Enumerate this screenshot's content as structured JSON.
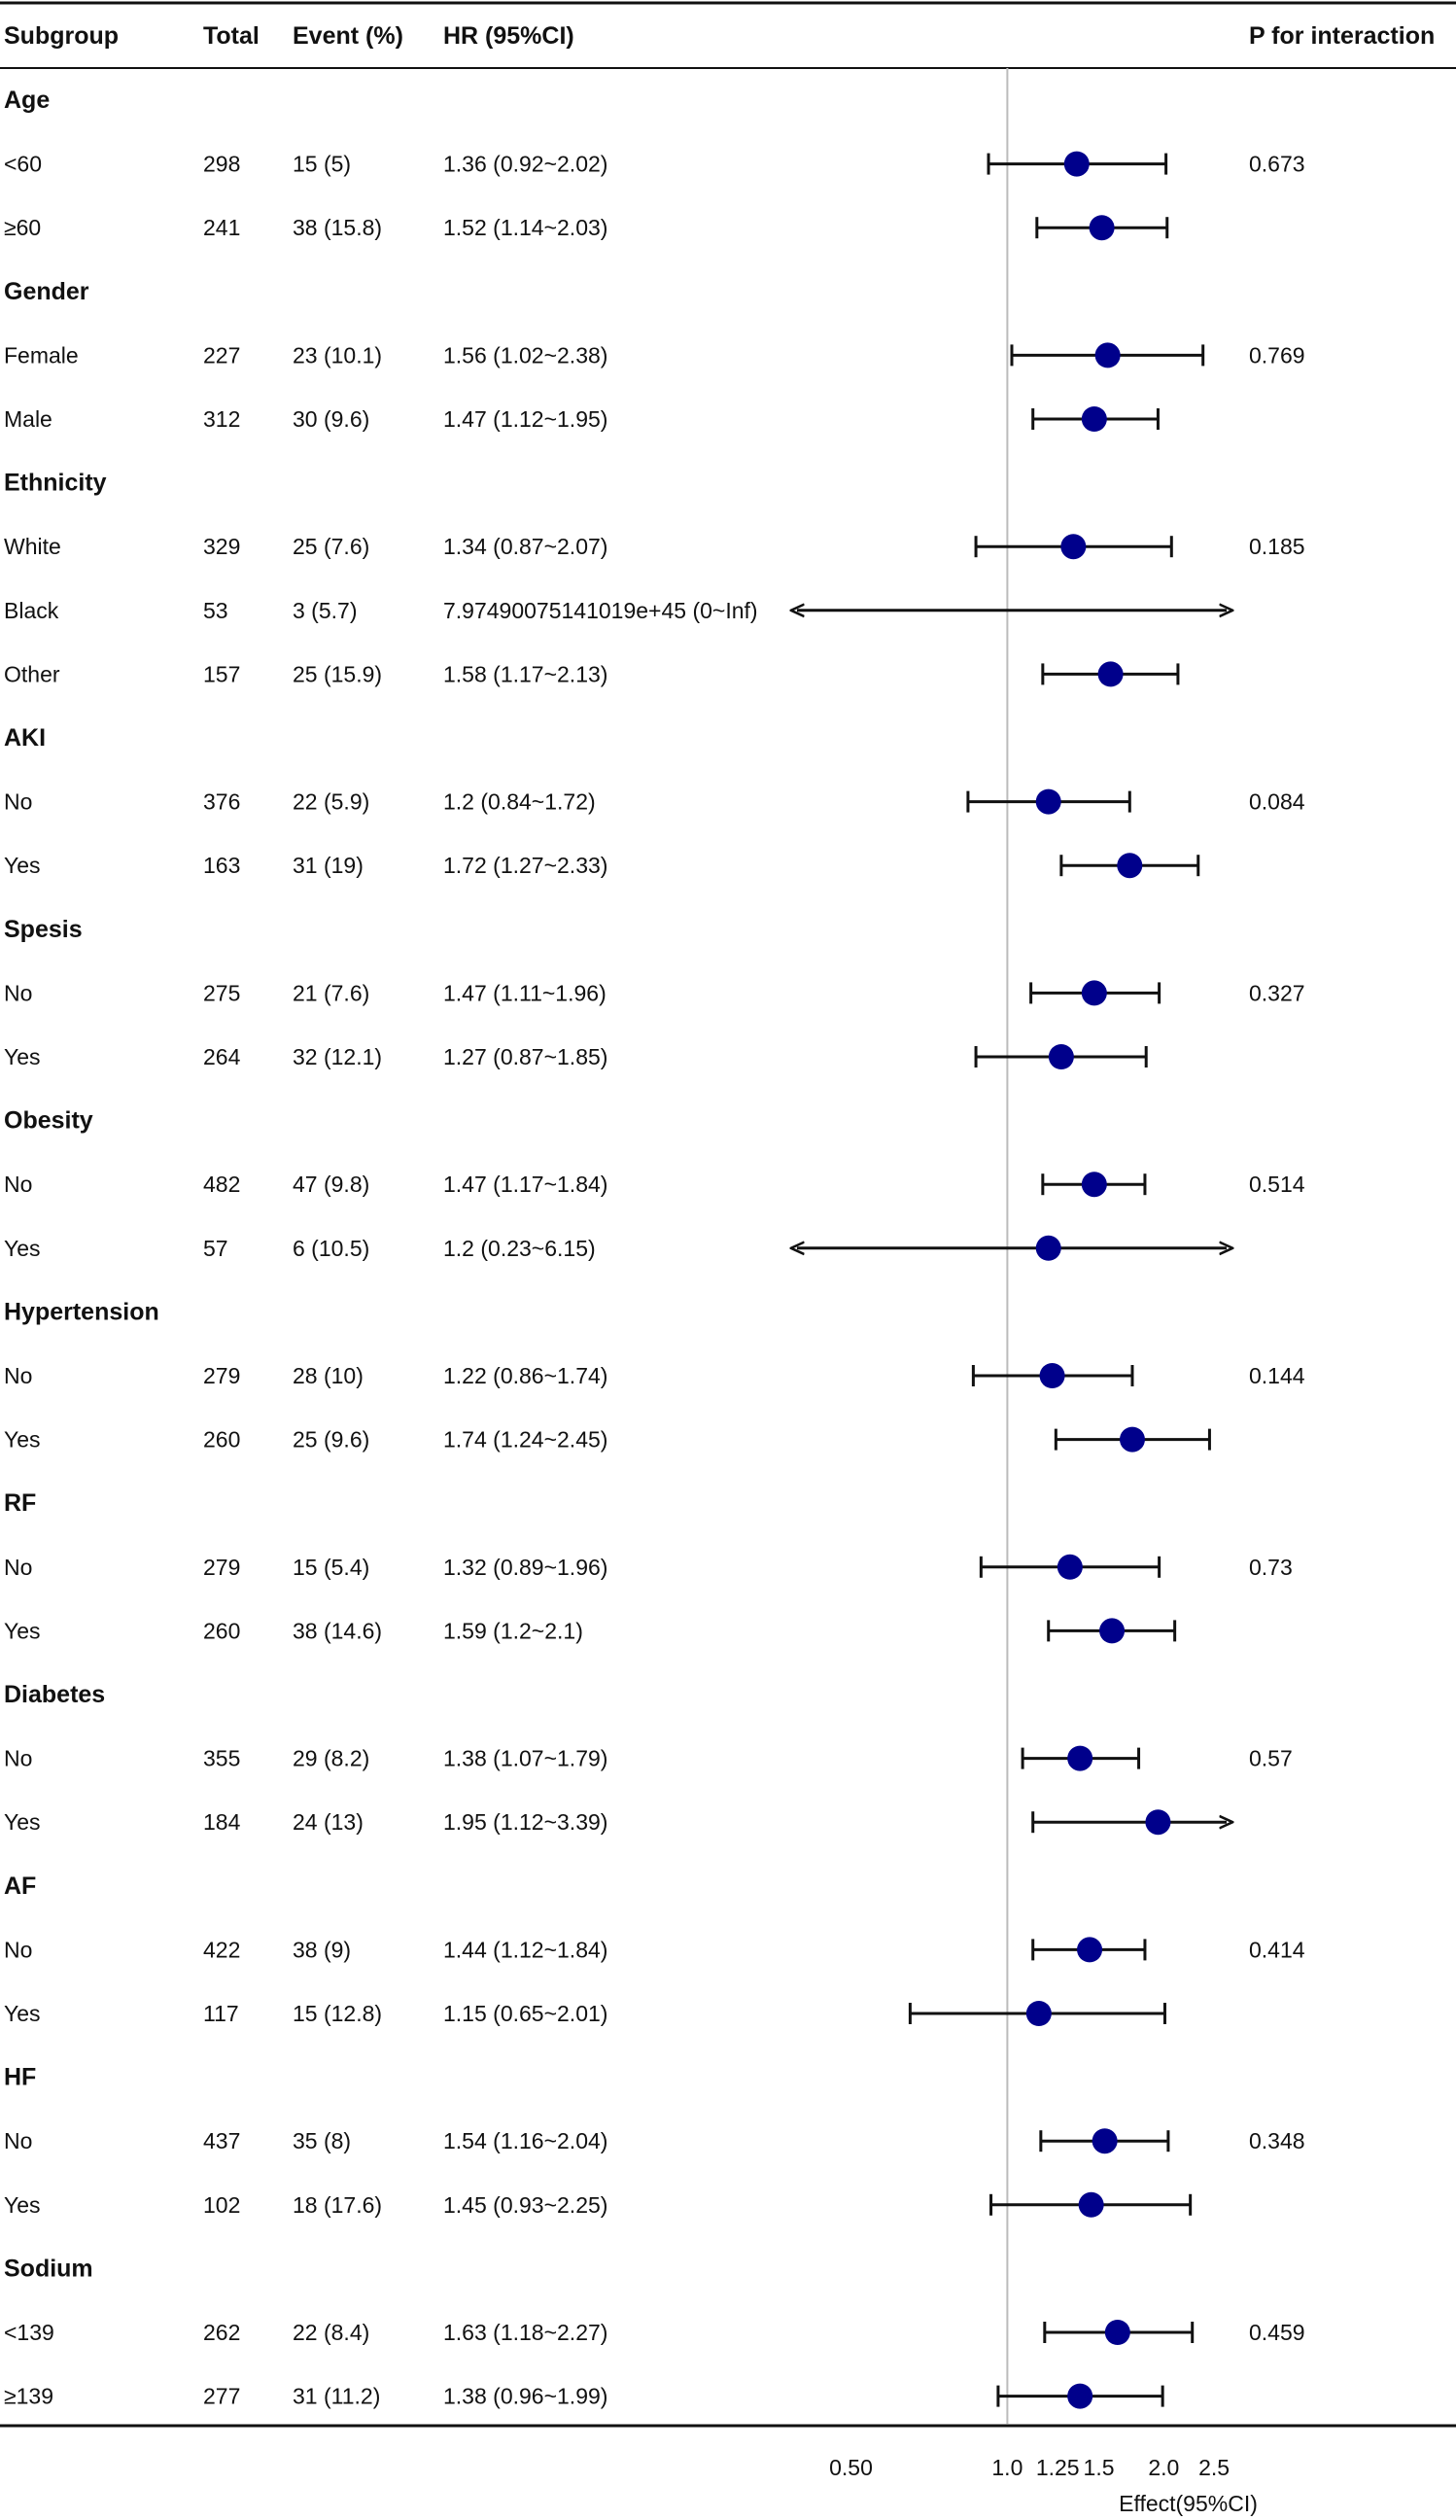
{
  "chart_data": {
    "type": "forest",
    "title": "",
    "columns": [
      "Subgroup",
      "Total",
      "Event (%)",
      "HR (95%CI)",
      "P for interaction"
    ],
    "xlabel": "Effect(95%CI)",
    "xscale": "log",
    "xlim": [
      0.42,
      2.62
    ],
    "reference_line": 1.0,
    "xticks": [
      0.5,
      1.0,
      1.25,
      1.5,
      2.0,
      2.5
    ],
    "xtick_labels": [
      "0.50",
      "1.0",
      "1.25",
      "1.5",
      "2.0",
      "2.5"
    ],
    "point_color": "#00008b",
    "line_color": "#111111",
    "reference_color": "#bbbbbb",
    "groups": [
      {
        "name": "Age",
        "p": "0.673",
        "rows": [
          {
            "label": "<60",
            "total": "298",
            "event": "15 (5)",
            "hr_text": "1.36 (0.92~2.02)",
            "hr": 1.36,
            "lo": 0.92,
            "hi": 2.02
          },
          {
            "label": "≥60",
            "total": "241",
            "event": "38 (15.8)",
            "hr_text": "1.52 (1.14~2.03)",
            "hr": 1.52,
            "lo": 1.14,
            "hi": 2.03
          }
        ]
      },
      {
        "name": "Gender",
        "p": "0.769",
        "rows": [
          {
            "label": "Female",
            "total": "227",
            "event": "23 (10.1)",
            "hr_text": "1.56 (1.02~2.38)",
            "hr": 1.56,
            "lo": 1.02,
            "hi": 2.38
          },
          {
            "label": "Male",
            "total": "312",
            "event": "30 (9.6)",
            "hr_text": "1.47 (1.12~1.95)",
            "hr": 1.47,
            "lo": 1.12,
            "hi": 1.95
          }
        ]
      },
      {
        "name": "Ethnicity",
        "p": "0.185",
        "rows": [
          {
            "label": "White",
            "total": "329",
            "event": "25 (7.6)",
            "hr_text": "1.34 (0.87~2.07)",
            "hr": 1.34,
            "lo": 0.87,
            "hi": 2.07
          },
          {
            "label": "Black",
            "total": "53",
            "event": "3 (5.7)",
            "hr_text": "7.97490075141019e+45 (0~Inf)",
            "hr": null,
            "lo": 0,
            "hi": null
          },
          {
            "label": "Other",
            "total": "157",
            "event": "25 (15.9)",
            "hr_text": "1.58 (1.17~2.13)",
            "hr": 1.58,
            "lo": 1.17,
            "hi": 2.13
          }
        ]
      },
      {
        "name": "AKI",
        "p": "0.084",
        "rows": [
          {
            "label": "No",
            "total": "376",
            "event": "22 (5.9)",
            "hr_text": "1.2 (0.84~1.72)",
            "hr": 1.2,
            "lo": 0.84,
            "hi": 1.72
          },
          {
            "label": "Yes",
            "total": "163",
            "event": "31 (19)",
            "hr_text": "1.72 (1.27~2.33)",
            "hr": 1.72,
            "lo": 1.27,
            "hi": 2.33
          }
        ]
      },
      {
        "name": "Spesis",
        "p": "0.327",
        "rows": [
          {
            "label": "No",
            "total": "275",
            "event": "21 (7.6)",
            "hr_text": "1.47 (1.11~1.96)",
            "hr": 1.47,
            "lo": 1.11,
            "hi": 1.96
          },
          {
            "label": "Yes",
            "total": "264",
            "event": "32 (12.1)",
            "hr_text": "1.27 (0.87~1.85)",
            "hr": 1.27,
            "lo": 0.87,
            "hi": 1.85
          }
        ]
      },
      {
        "name": "Obesity",
        "p": "0.514",
        "rows": [
          {
            "label": "No",
            "total": "482",
            "event": "47 (9.8)",
            "hr_text": "1.47 (1.17~1.84)",
            "hr": 1.47,
            "lo": 1.17,
            "hi": 1.84
          },
          {
            "label": "Yes",
            "total": "57",
            "event": "6 (10.5)",
            "hr_text": "1.2 (0.23~6.15)",
            "hr": 1.2,
            "lo": 0.23,
            "hi": 6.15
          }
        ]
      },
      {
        "name": "Hypertension",
        "p": "0.144",
        "rows": [
          {
            "label": "No",
            "total": "279",
            "event": "28 (10)",
            "hr_text": "1.22 (0.86~1.74)",
            "hr": 1.22,
            "lo": 0.86,
            "hi": 1.74
          },
          {
            "label": "Yes",
            "total": "260",
            "event": "25 (9.6)",
            "hr_text": "1.74 (1.24~2.45)",
            "hr": 1.74,
            "lo": 1.24,
            "hi": 2.45
          }
        ]
      },
      {
        "name": "RF",
        "p": "0.73",
        "rows": [
          {
            "label": "No",
            "total": "279",
            "event": "15 (5.4)",
            "hr_text": "1.32 (0.89~1.96)",
            "hr": 1.32,
            "lo": 0.89,
            "hi": 1.96
          },
          {
            "label": "Yes",
            "total": "260",
            "event": "38 (14.6)",
            "hr_text": "1.59 (1.2~2.1)",
            "hr": 1.59,
            "lo": 1.2,
            "hi": 2.1
          }
        ]
      },
      {
        "name": "Diabetes",
        "p": "0.57",
        "rows": [
          {
            "label": "No",
            "total": "355",
            "event": "29 (8.2)",
            "hr_text": "1.38 (1.07~1.79)",
            "hr": 1.38,
            "lo": 1.07,
            "hi": 1.79
          },
          {
            "label": "Yes",
            "total": "184",
            "event": "24 (13)",
            "hr_text": "1.95 (1.12~3.39)",
            "hr": 1.95,
            "lo": 1.12,
            "hi": 3.39
          }
        ]
      },
      {
        "name": "AF",
        "p": "0.414",
        "rows": [
          {
            "label": "No",
            "total": "422",
            "event": "38 (9)",
            "hr_text": "1.44 (1.12~1.84)",
            "hr": 1.44,
            "lo": 1.12,
            "hi": 1.84
          },
          {
            "label": "Yes",
            "total": "117",
            "event": "15 (12.8)",
            "hr_text": "1.15 (0.65~2.01)",
            "hr": 1.15,
            "lo": 0.65,
            "hi": 2.01
          }
        ]
      },
      {
        "name": "HF",
        "p": "0.348",
        "rows": [
          {
            "label": "No",
            "total": "437",
            "event": "35 (8)",
            "hr_text": "1.54 (1.16~2.04)",
            "hr": 1.54,
            "lo": 1.16,
            "hi": 2.04
          },
          {
            "label": "Yes",
            "total": "102",
            "event": "18 (17.6)",
            "hr_text": "1.45 (0.93~2.25)",
            "hr": 1.45,
            "lo": 0.93,
            "hi": 2.25
          }
        ]
      },
      {
        "name": "Sodium",
        "p": "0.459",
        "rows": [
          {
            "label": "<139",
            "total": "262",
            "event": "22 (8.4)",
            "hr_text": "1.63 (1.18~2.27)",
            "hr": 1.63,
            "lo": 1.18,
            "hi": 2.27
          },
          {
            "label": "≥139",
            "total": "277",
            "event": "31 (11.2)",
            "hr_text": "1.38 (0.96~1.99)",
            "hr": 1.38,
            "lo": 0.96,
            "hi": 1.99
          }
        ]
      }
    ]
  }
}
